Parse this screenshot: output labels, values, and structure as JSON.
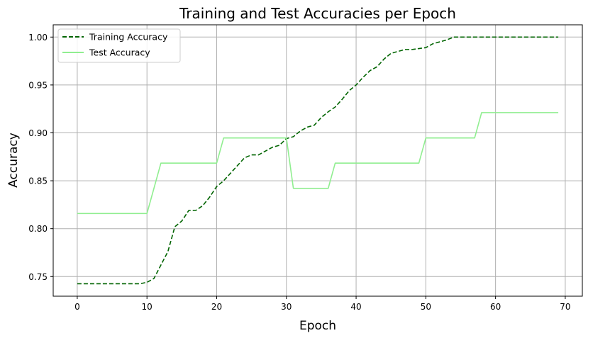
{
  "chart_data": {
    "type": "line",
    "title": "Training and Test Accuracies per Epoch",
    "xlabel": "Epoch",
    "ylabel": "Accuracy",
    "xlim": [
      -3.45,
      72.45
    ],
    "ylim": [
      0.7295,
      1.0128
    ],
    "xticks": [
      0,
      10,
      20,
      30,
      40,
      50,
      60,
      70
    ],
    "yticks": [
      0.75,
      0.8,
      0.85,
      0.9,
      0.95,
      1.0
    ],
    "ytick_labels": [
      "0.75",
      "0.80",
      "0.85",
      "0.90",
      "0.95",
      "1.00"
    ],
    "grid": true,
    "legend_position": "upper-left",
    "series": [
      {
        "name": "Training Accuracy",
        "color": "#006400",
        "style": "dashed",
        "x": [
          0,
          1,
          2,
          3,
          4,
          5,
          6,
          7,
          8,
          9,
          10,
          11,
          12,
          13,
          14,
          15,
          16,
          17,
          18,
          19,
          20,
          21,
          22,
          23,
          24,
          25,
          26,
          27,
          28,
          29,
          30,
          31,
          32,
          33,
          34,
          35,
          36,
          37,
          38,
          39,
          40,
          41,
          42,
          43,
          44,
          45,
          46,
          47,
          48,
          49,
          50,
          51,
          52,
          53,
          54,
          55,
          56,
          57,
          58,
          59,
          60,
          61,
          62,
          63,
          64,
          65,
          66,
          67,
          68,
          69
        ],
        "values": [
          0.7425,
          0.7425,
          0.7425,
          0.7425,
          0.7425,
          0.7425,
          0.7425,
          0.7425,
          0.7425,
          0.7425,
          0.744,
          0.748,
          0.762,
          0.776,
          0.802,
          0.808,
          0.819,
          0.819,
          0.824,
          0.833,
          0.844,
          0.85,
          0.858,
          0.866,
          0.874,
          0.877,
          0.877,
          0.881,
          0.885,
          0.887,
          0.894,
          0.896,
          0.902,
          0.906,
          0.908,
          0.916,
          0.922,
          0.927,
          0.935,
          0.944,
          0.95,
          0.958,
          0.965,
          0.969,
          0.977,
          0.983,
          0.985,
          0.987,
          0.987,
          0.988,
          0.989,
          0.993,
          0.995,
          0.997,
          1.0,
          1.0,
          1.0,
          1.0,
          1.0,
          1.0,
          1.0,
          1.0,
          1.0,
          1.0,
          1.0,
          1.0,
          1.0,
          1.0,
          1.0,
          1.0
        ]
      },
      {
        "name": "Test Accuracy",
        "color": "#90EE90",
        "style": "solid",
        "x": [
          0,
          1,
          2,
          3,
          4,
          5,
          6,
          7,
          8,
          9,
          10,
          11,
          12,
          13,
          14,
          15,
          16,
          17,
          18,
          19,
          20,
          21,
          22,
          23,
          24,
          25,
          26,
          27,
          28,
          29,
          30,
          31,
          32,
          33,
          34,
          35,
          36,
          37,
          38,
          39,
          40,
          41,
          42,
          43,
          44,
          45,
          46,
          47,
          48,
          49,
          50,
          51,
          52,
          53,
          54,
          55,
          56,
          57,
          58,
          59,
          60,
          61,
          62,
          63,
          64,
          65,
          66,
          67,
          68,
          69
        ],
        "values": [
          0.8158,
          0.8158,
          0.8158,
          0.8158,
          0.8158,
          0.8158,
          0.8158,
          0.8158,
          0.8158,
          0.8158,
          0.8158,
          0.8421,
          0.8684,
          0.8684,
          0.8684,
          0.8684,
          0.8684,
          0.8684,
          0.8684,
          0.8684,
          0.8684,
          0.8947,
          0.8947,
          0.8947,
          0.8947,
          0.8947,
          0.8947,
          0.8947,
          0.8947,
          0.8947,
          0.8947,
          0.8421,
          0.8421,
          0.8421,
          0.8421,
          0.8421,
          0.8421,
          0.8684,
          0.8684,
          0.8684,
          0.8684,
          0.8684,
          0.8684,
          0.8684,
          0.8684,
          0.8684,
          0.8684,
          0.8684,
          0.8684,
          0.8684,
          0.8947,
          0.8947,
          0.8947,
          0.8947,
          0.8947,
          0.8947,
          0.8947,
          0.8947,
          0.9211,
          0.9211,
          0.9211,
          0.9211,
          0.9211,
          0.9211,
          0.9211,
          0.9211,
          0.9211,
          0.9211,
          0.9211,
          0.9211
        ]
      }
    ]
  }
}
